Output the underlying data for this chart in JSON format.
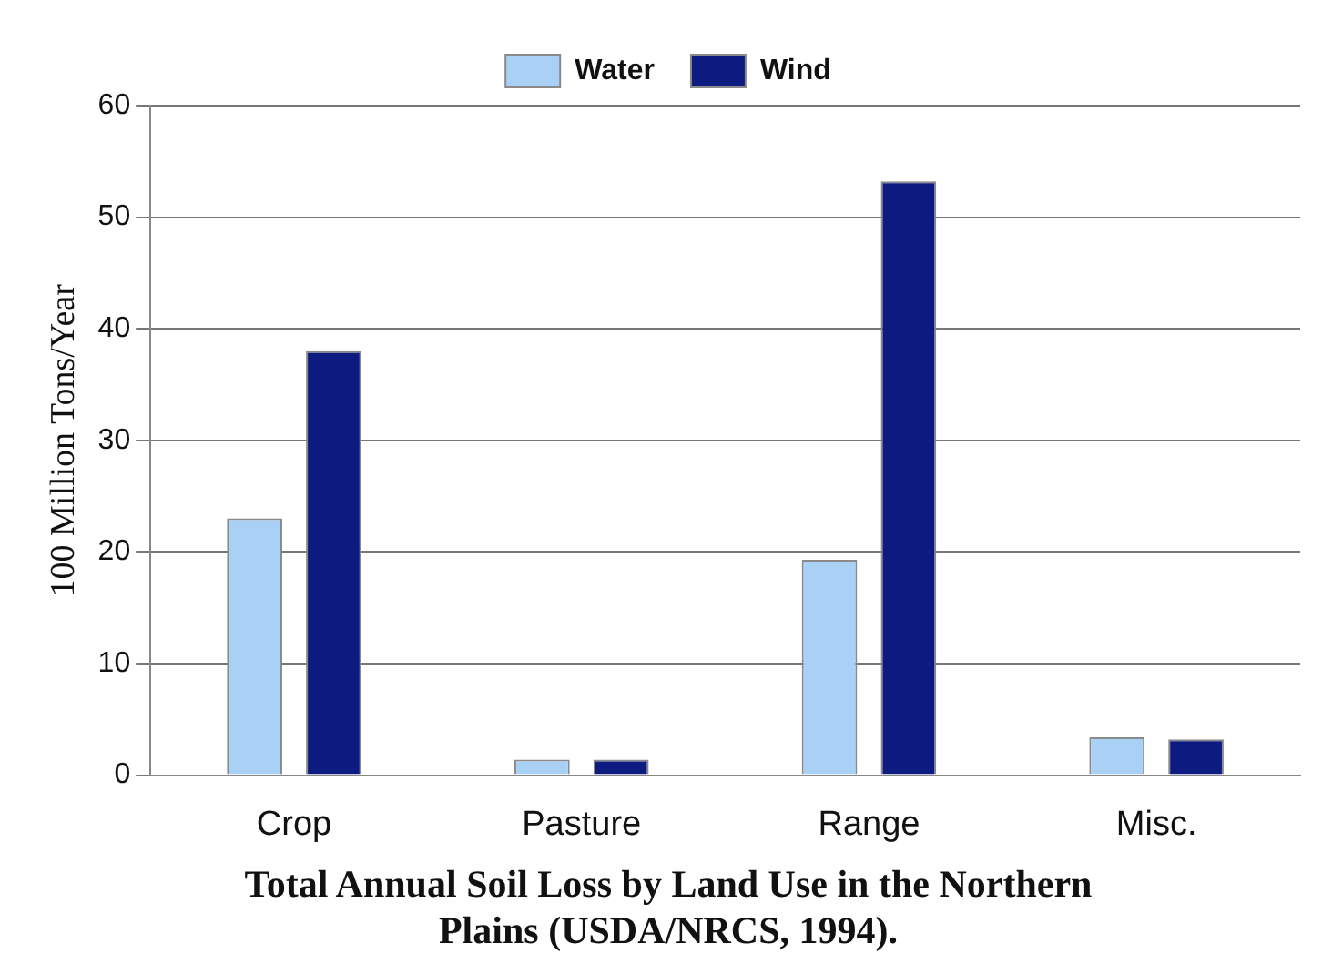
{
  "chart_data": {
    "type": "bar",
    "title": "Total Annual Soil Loss by Land Use in the Northern Plains (USDA/NRCS, 1994).",
    "ylabel": "100 Million Tons/Year",
    "categories": [
      "Crop",
      "Pasture",
      "Range",
      "Misc."
    ],
    "series": [
      {
        "name": "Water",
        "color": "#a9d1f5",
        "values": [
          23,
          1.4,
          19.3,
          3.4
        ]
      },
      {
        "name": "Wind",
        "color": "#0d1a80",
        "values": [
          38,
          1.4,
          53.2,
          3.2
        ]
      }
    ],
    "ylim": [
      0,
      60
    ],
    "yticks": [
      0,
      10,
      20,
      30,
      40,
      50,
      60
    ],
    "grid": "y",
    "legend": "top"
  }
}
